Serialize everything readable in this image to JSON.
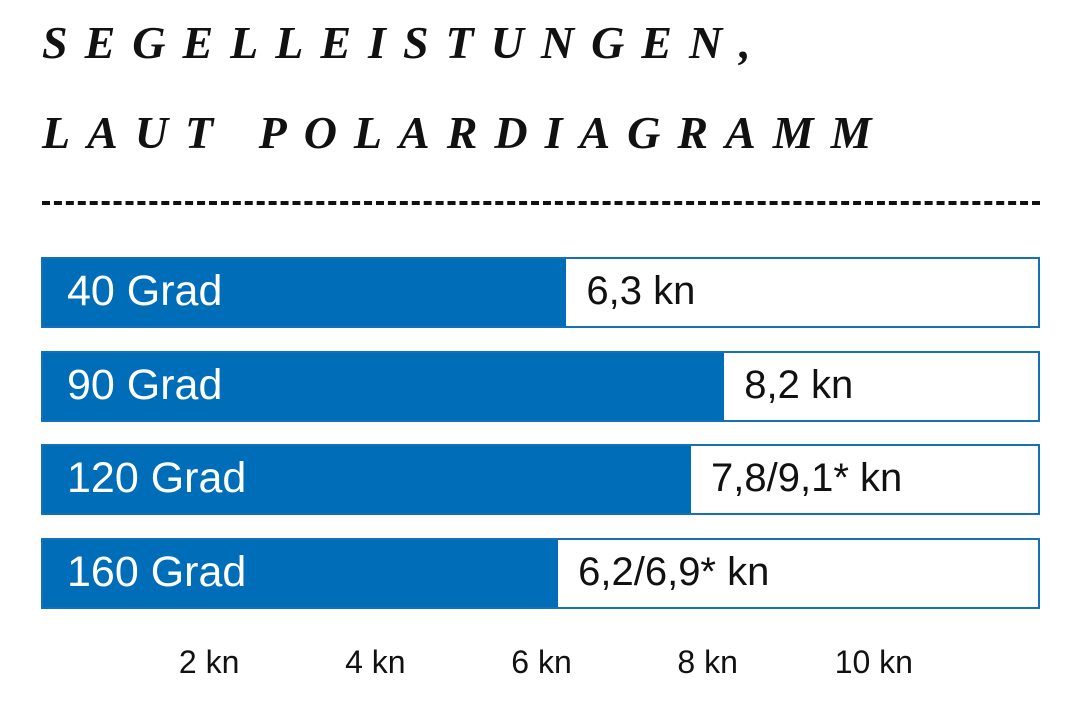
{
  "chart_data": {
    "type": "bar",
    "orientation": "horizontal",
    "title": "SEGELLEISTUNGEN, LAUT POLARDIAGRAMM",
    "title_lines": [
      "SEGELLEISTUNGEN,",
      "LAUT POLARDIAGRAMM"
    ],
    "categories": [
      "40 Grad",
      "90 Grad",
      "120 Grad",
      "160 Grad"
    ],
    "values": [
      6.3,
      8.2,
      7.8,
      6.2
    ],
    "value_labels": [
      "6,3 kn",
      "8,2 kn",
      "7,8/9,1* kn",
      "6,2/6,9* kn"
    ],
    "xlim": [
      0,
      12
    ],
    "x_ticks": [
      2,
      4,
      6,
      8,
      10
    ],
    "x_tick_labels": [
      "2 kn",
      "4 kn",
      "6 kn",
      "8 kn",
      "10 kn"
    ],
    "grid": false,
    "colors": {
      "bar": "#006db8",
      "track_border": "#1570b8",
      "text": "#111111"
    }
  }
}
